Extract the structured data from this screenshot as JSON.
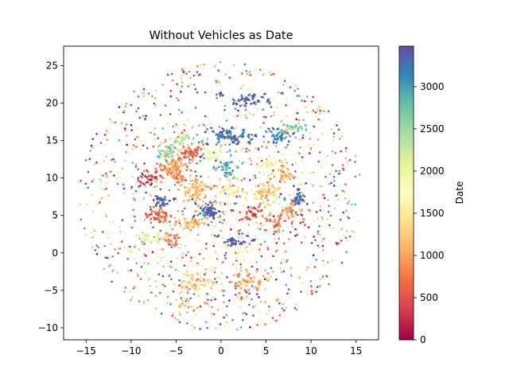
{
  "chart_data": {
    "type": "scatter",
    "title": "Without Vehicles as Date",
    "xlabel": "",
    "ylabel": "",
    "xlim": [
      -17.5,
      17.5
    ],
    "ylim": [
      -11.6,
      27.6
    ],
    "xticks": [
      -15,
      -10,
      -5,
      0,
      5,
      10,
      15
    ],
    "yticks": [
      -10,
      -5,
      0,
      5,
      10,
      15,
      20,
      25
    ],
    "grid": false,
    "colorbar": {
      "label": "Date",
      "colormap": "Spectral",
      "range": [
        0,
        3480
      ],
      "ticks": [
        0,
        500,
        1000,
        1500,
        2000,
        2500,
        3000
      ]
    },
    "clusters": [
      {
        "x": -5.0,
        "y": 11.0,
        "sx": 1.6,
        "sy": 1.8,
        "c": 950,
        "n": 90
      },
      {
        "x": -2.5,
        "y": 8.5,
        "sx": 1.2,
        "sy": 1.2,
        "c": 1100,
        "n": 55
      },
      {
        "x": -3.5,
        "y": 13.5,
        "sx": 1.0,
        "sy": 1.0,
        "c": 700,
        "n": 40
      },
      {
        "x": 5.0,
        "y": 8.0,
        "sx": 1.3,
        "sy": 1.3,
        "c": 1300,
        "n": 55
      },
      {
        "x": 7.0,
        "y": 10.5,
        "sx": 1.0,
        "sy": 0.8,
        "c": 1200,
        "n": 30
      },
      {
        "x": 8.0,
        "y": 5.5,
        "sx": 1.0,
        "sy": 1.0,
        "c": 1000,
        "n": 30
      },
      {
        "x": -3.0,
        "y": 4.0,
        "sx": 1.6,
        "sy": 1.0,
        "c": 1150,
        "n": 45
      },
      {
        "x": -7.0,
        "y": 5.0,
        "sx": 1.2,
        "sy": 1.0,
        "c": 600,
        "n": 35
      },
      {
        "x": -8.0,
        "y": 10.0,
        "sx": 1.0,
        "sy": 1.0,
        "c": 300,
        "n": 25
      },
      {
        "x": 1.0,
        "y": 8.5,
        "sx": 1.5,
        "sy": 1.2,
        "c": 1500,
        "n": 40
      },
      {
        "x": -3.0,
        "y": -4.0,
        "sx": 2.5,
        "sy": 1.8,
        "c": 1250,
        "n": 55
      },
      {
        "x": 3.0,
        "y": -4.0,
        "sx": 2.2,
        "sy": 1.8,
        "c": 1050,
        "n": 45
      },
      {
        "x": -5.5,
        "y": 2.0,
        "sx": 1.0,
        "sy": 1.0,
        "c": 800,
        "n": 25
      },
      {
        "x": 6.0,
        "y": 4.0,
        "sx": 1.0,
        "sy": 1.0,
        "c": 750,
        "n": 25
      },
      {
        "x": 1.0,
        "y": 15.5,
        "sx": 2.5,
        "sy": 1.0,
        "c": 3250,
        "n": 65
      },
      {
        "x": -1.5,
        "y": 5.5,
        "sx": 1.2,
        "sy": 0.8,
        "c": 3350,
        "n": 40
      },
      {
        "x": -6.5,
        "y": 7.0,
        "sx": 0.8,
        "sy": 0.8,
        "c": 3400,
        "n": 25
      },
      {
        "x": 8.5,
        "y": 7.0,
        "sx": 1.0,
        "sy": 1.2,
        "c": 3300,
        "n": 30
      },
      {
        "x": 3.0,
        "y": 20.5,
        "sx": 2.0,
        "sy": 0.7,
        "c": 3350,
        "n": 35
      },
      {
        "x": 6.5,
        "y": 15.5,
        "sx": 1.0,
        "sy": 0.8,
        "c": 3150,
        "n": 30
      },
      {
        "x": 1.5,
        "y": 1.5,
        "sx": 1.2,
        "sy": 0.5,
        "c": 3400,
        "n": 25
      },
      {
        "x": -4.5,
        "y": 15.0,
        "sx": 1.2,
        "sy": 1.0,
        "c": 2300,
        "n": 30
      },
      {
        "x": -6.0,
        "y": 13.5,
        "sx": 1.0,
        "sy": 1.0,
        "c": 2450,
        "n": 30
      },
      {
        "x": 8.0,
        "y": 16.5,
        "sx": 1.0,
        "sy": 0.8,
        "c": 2600,
        "n": 25
      },
      {
        "x": 0.5,
        "y": 11.5,
        "sx": 1.2,
        "sy": 1.2,
        "c": 2800,
        "n": 30
      },
      {
        "x": -8.0,
        "y": 2.0,
        "sx": 1.2,
        "sy": 1.0,
        "c": 2150,
        "n": 25
      },
      {
        "x": 2.0,
        "y": 0.0,
        "sx": 1.8,
        "sy": 1.0,
        "c": 1700,
        "n": 25
      },
      {
        "x": -1.0,
        "y": 13.0,
        "sx": 1.0,
        "sy": 1.0,
        "c": 1850,
        "n": 25
      },
      {
        "x": 5.5,
        "y": 12.0,
        "sx": 1.5,
        "sy": 1.0,
        "c": 1600,
        "n": 30
      },
      {
        "x": 3.5,
        "y": 5.5,
        "sx": 1.0,
        "sy": 1.0,
        "c": 500,
        "n": 25
      }
    ],
    "background_points": {
      "count": 1300,
      "center": [
        0,
        7.5
      ],
      "radius_x": 15.8,
      "radius_y": 18.0,
      "color_range": [
        0,
        3480
      ]
    }
  }
}
